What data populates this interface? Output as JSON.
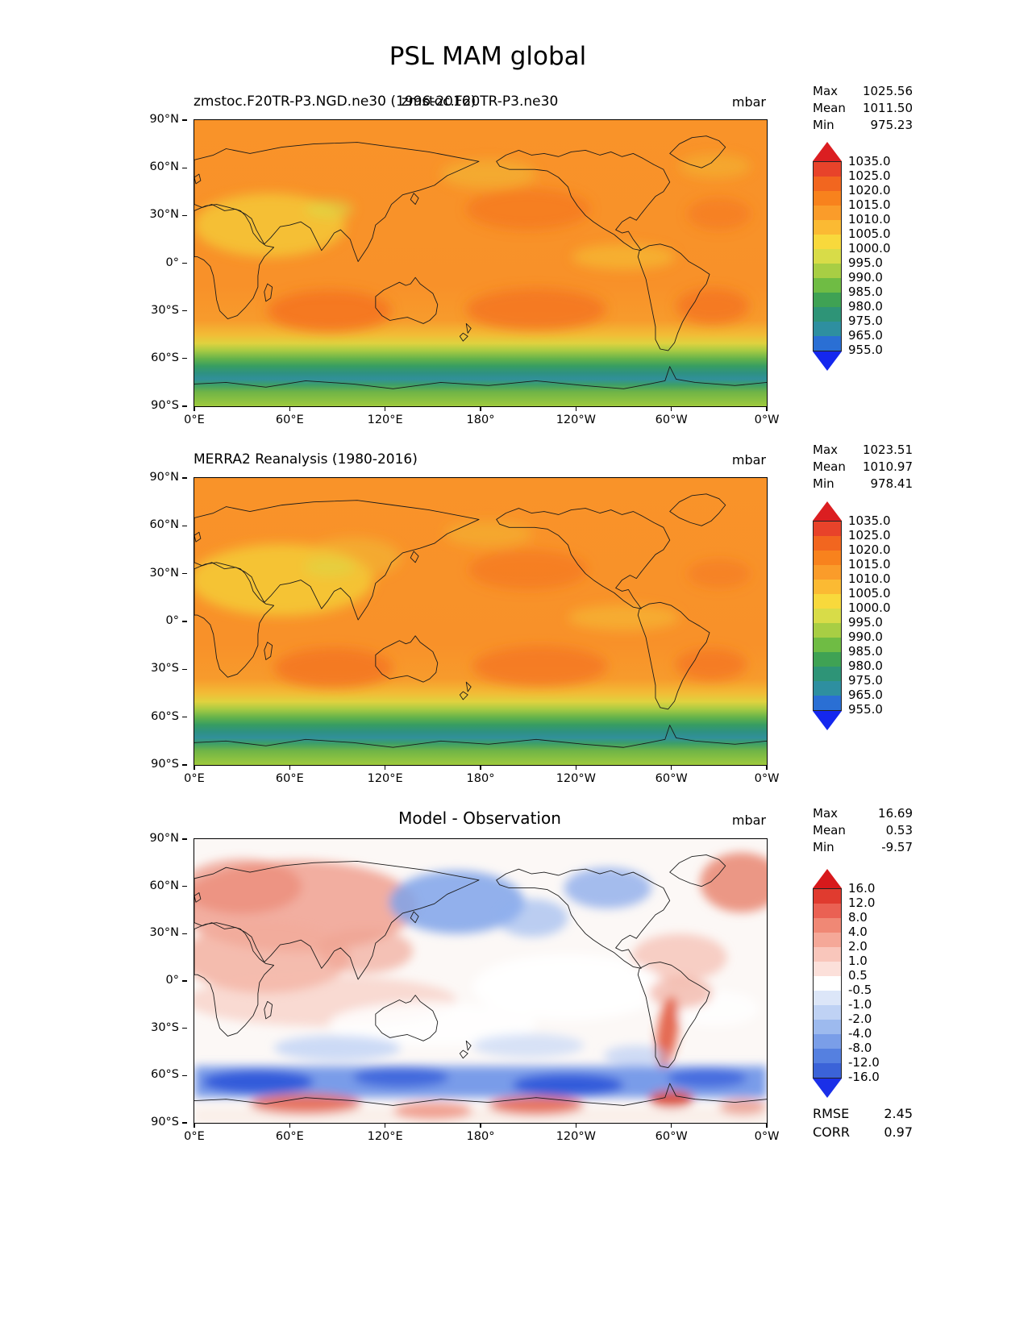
{
  "page": {
    "title": "PSL MAM global"
  },
  "colors": {
    "pressure_arrow_top": "#DB1E21",
    "pressure_arrow_bottom": "#1427EE",
    "pressure_segments": [
      "#E8432A",
      "#F2661F",
      "#F8821D",
      "#FA9C2A",
      "#FBBA33",
      "#F8D93C",
      "#D8DC48",
      "#A8CE44",
      "#6FBC44",
      "#3FA254",
      "#2E9477",
      "#2E8FA0",
      "#2A6FD4"
    ],
    "diff_arrow_top": "#D7191C",
    "diff_arrow_bottom": "#1A2FE8",
    "diff_segments": [
      "#E03B2F",
      "#EA6153",
      "#F08875",
      "#F5A898",
      "#F9C6BB",
      "#FCE0DA",
      "#FFFFFF",
      "#DCE6F8",
      "#BFD2F4",
      "#9DBAEE",
      "#7A9EE8",
      "#5580E0",
      "#3B63D8"
    ]
  },
  "chart_data": [
    {
      "type": "heatmap",
      "panel": "model",
      "title": "zmstoc.F20TR-P3.NGD.ne30 (1996-2016)",
      "title_overlay": "zmstoc.F20TR-P3.ne30",
      "units": "mbar",
      "stats": [
        {
          "label": "Max",
          "value": "1025.56"
        },
        {
          "label": "Mean",
          "value": "1011.50"
        },
        {
          "label": "Min",
          "value": "975.23"
        }
      ],
      "colorbar_ticks": [
        "1035.0",
        "1025.0",
        "1020.0",
        "1015.0",
        "1010.0",
        "1005.0",
        "1000.0",
        "995.0",
        "990.0",
        "985.0",
        "980.0",
        "975.0",
        "965.0",
        "955.0"
      ],
      "x_ticks": [
        "0°E",
        "60°E",
        "120°E",
        "180°",
        "120°W",
        "60°W",
        "0°W"
      ],
      "y_ticks": [
        "90°N",
        "60°N",
        "30°N",
        "0°",
        "30°S",
        "60°S",
        "90°S"
      ]
    },
    {
      "type": "heatmap",
      "panel": "observation",
      "title": "MERRA2 Reanalysis (1980-2016)",
      "units": "mbar",
      "stats": [
        {
          "label": "Max",
          "value": "1023.51"
        },
        {
          "label": "Mean",
          "value": "1010.97"
        },
        {
          "label": "Min",
          "value": "978.41"
        }
      ],
      "colorbar_ticks": [
        "1035.0",
        "1025.0",
        "1020.0",
        "1015.0",
        "1010.0",
        "1005.0",
        "1000.0",
        "995.0",
        "990.0",
        "985.0",
        "980.0",
        "975.0",
        "965.0",
        "955.0"
      ],
      "x_ticks": [
        "0°E",
        "60°E",
        "120°E",
        "180°",
        "120°W",
        "60°W",
        "0°W"
      ],
      "y_ticks": [
        "90°N",
        "60°N",
        "30°N",
        "0°",
        "30°S",
        "60°S",
        "90°S"
      ]
    },
    {
      "type": "heatmap",
      "panel": "difference",
      "title": "Model - Observation",
      "units": "mbar",
      "stats": [
        {
          "label": "Max",
          "value": "16.69"
        },
        {
          "label": "Mean",
          "value": "0.53"
        },
        {
          "label": "Min",
          "value": "-9.57"
        }
      ],
      "colorbar_ticks": [
        "16.0",
        "12.0",
        "8.0",
        "4.0",
        "2.0",
        "1.0",
        "0.5",
        "-0.5",
        "-1.0",
        "-2.0",
        "-4.0",
        "-8.0",
        "-12.0",
        "-16.0"
      ],
      "metrics": [
        {
          "label": "RMSE",
          "value": "2.45"
        },
        {
          "label": "CORR",
          "value": "0.97"
        }
      ],
      "x_ticks": [
        "0°E",
        "60°E",
        "120°E",
        "180°",
        "120°W",
        "60°W",
        "0°W"
      ],
      "y_ticks": [
        "90°N",
        "60°N",
        "30°N",
        "0°",
        "30°S",
        "60°S",
        "90°S"
      ]
    }
  ]
}
